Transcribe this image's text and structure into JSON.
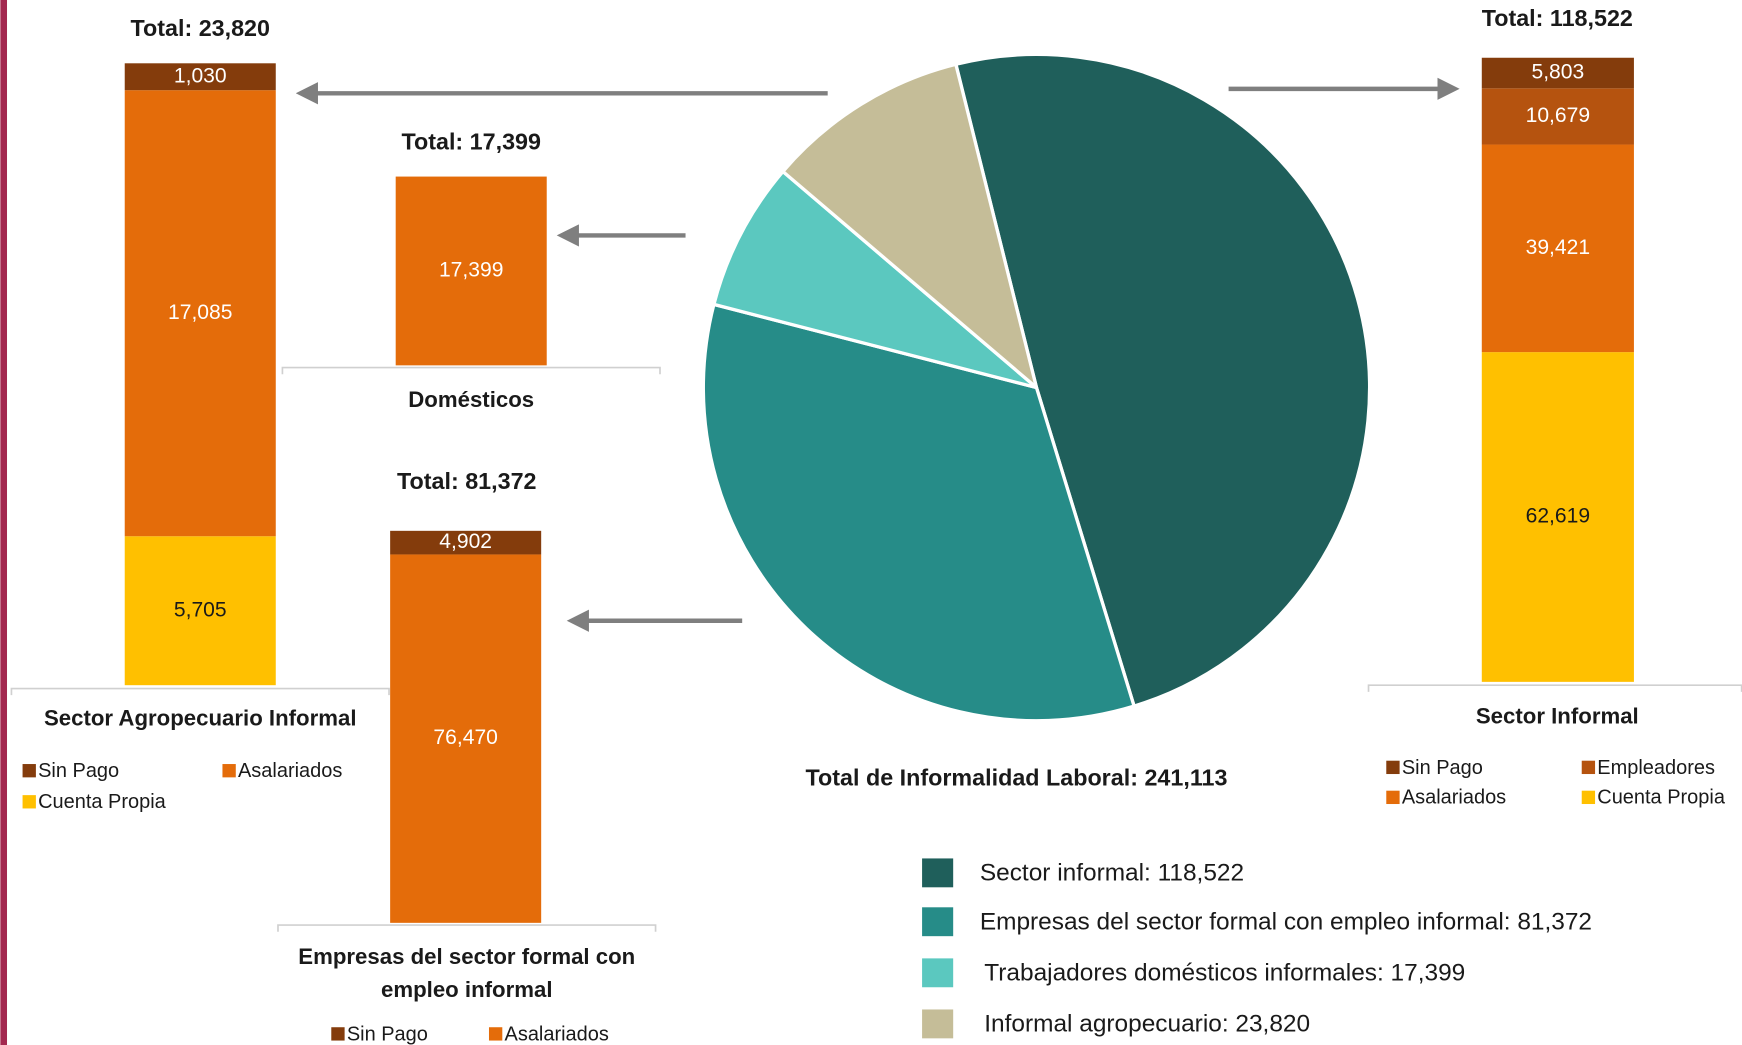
{
  "chart_data": [
    {
      "type": "pie",
      "title": "Total de Informalidad Laboral: 241,113",
      "categories": [
        "Sector informal: 118,522",
        "Empresas del sector formal con empleo informal: 81,372",
        "Trabajadores domésticos informales: 17,399",
        "Informal agropecuario: 23,820"
      ],
      "values": [
        118522,
        81372,
        17399,
        23820
      ],
      "colors": [
        "#1f5f5b",
        "#268c88",
        "#5bc8bf",
        "#c5bd98"
      ]
    },
    {
      "type": "stacked_bar",
      "title": "Total: 23,820",
      "categories": [
        "Sector Agropecuario Informal"
      ],
      "series": [
        {
          "name": "Sin Pago",
          "color": "#843c0c",
          "values": [
            1030
          ],
          "value_labels": [
            "1,030"
          ]
        },
        {
          "name": "Asalariados",
          "color": "#e46c0a",
          "values": [
            17085
          ],
          "value_labels": [
            "17,085"
          ]
        },
        {
          "name": "Cuenta Propia",
          "color": "#ffc000",
          "values": [
            5705
          ],
          "value_labels": [
            "5,705"
          ]
        }
      ]
    },
    {
      "type": "stacked_bar",
      "title": "Total: 17,399",
      "categories": [
        "Domésticos"
      ],
      "series": [
        {
          "name": "Asalariados",
          "color": "#e46c0a",
          "values": [
            17399
          ],
          "value_labels": [
            "17,399"
          ]
        }
      ]
    },
    {
      "type": "stacked_bar",
      "title": "Total: 81,372",
      "categories": [
        "Empresas del sector formal con empleo informal"
      ],
      "series": [
        {
          "name": "Sin Pago",
          "color": "#843c0c",
          "values": [
            4902
          ],
          "value_labels": [
            "4,902"
          ]
        },
        {
          "name": "Asalariados",
          "color": "#e46c0a",
          "values": [
            76470
          ],
          "value_labels": [
            "76,470"
          ]
        }
      ]
    },
    {
      "type": "stacked_bar",
      "title": "Total: 118,522",
      "categories": [
        "Sector Informal"
      ],
      "series": [
        {
          "name": "Sin Pago",
          "color": "#843c0c",
          "values": [
            5803
          ],
          "value_labels": [
            "5,803"
          ]
        },
        {
          "name": "Empleadores",
          "color": "#b5530f",
          "values": [
            10679
          ],
          "value_labels": [
            "10,679"
          ]
        },
        {
          "name": "Asalariados",
          "color": "#e46c0a",
          "values": [
            39421
          ],
          "value_labels": [
            "39,421"
          ]
        },
        {
          "name": "Cuenta Propia",
          "color": "#ffc000",
          "values": [
            62619
          ],
          "value_labels": [
            "62,619"
          ]
        }
      ]
    }
  ]
}
